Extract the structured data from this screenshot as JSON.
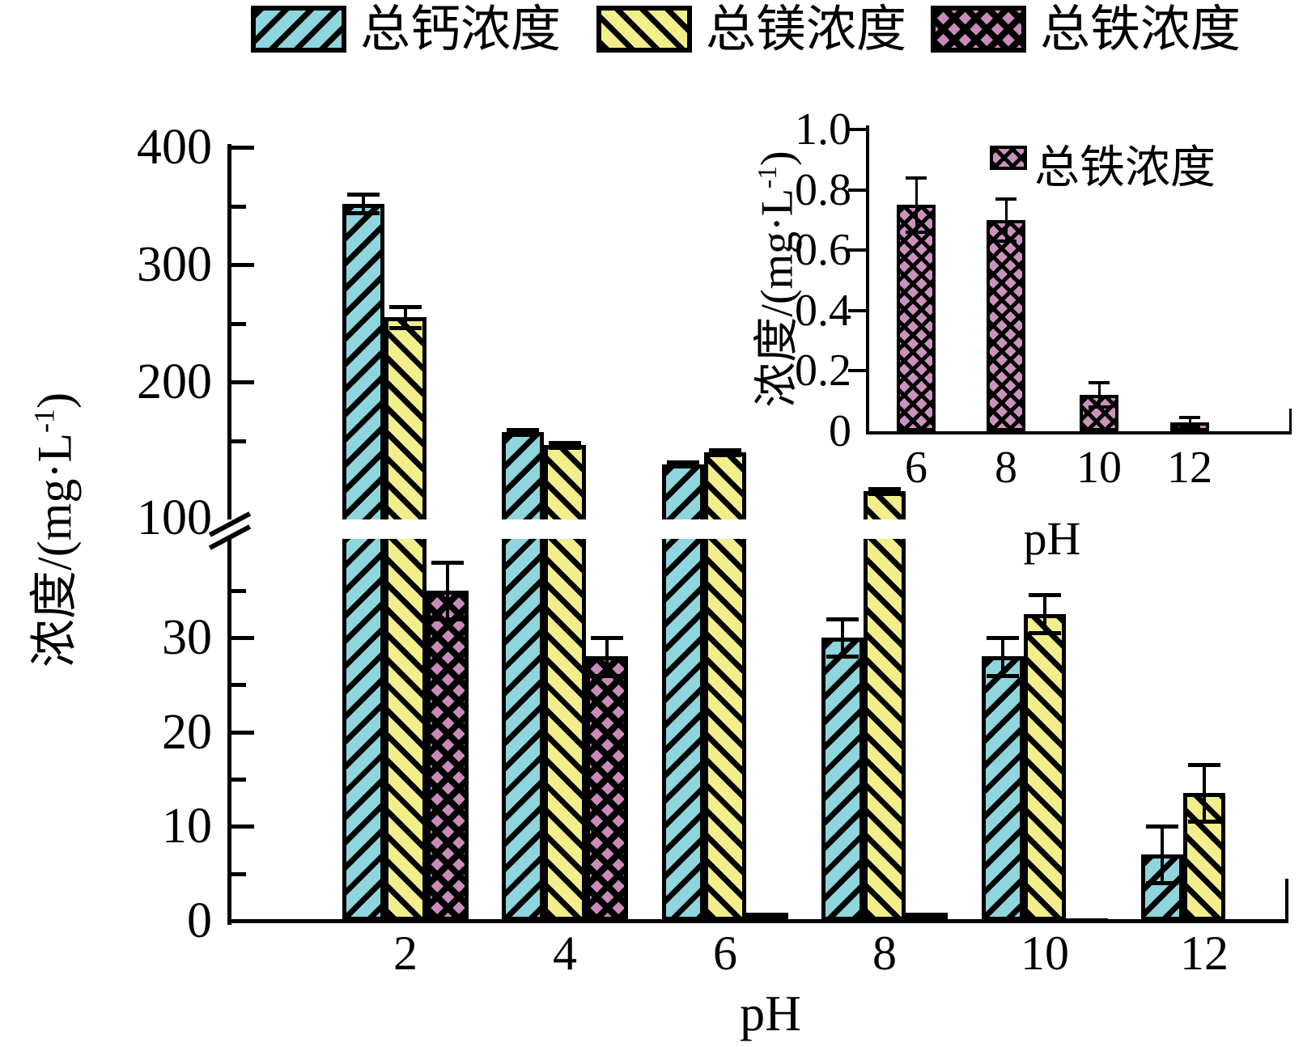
{
  "figure_bg": "#ffffff",
  "colors": {
    "calcium": "#8ed5dd",
    "magnesium": "#f2ee8c",
    "iron": "#c98bb9",
    "axis": "#000000"
  },
  "legend": {
    "items": [
      {
        "label": "总钙浓度",
        "pattern": "forward-diagonal-hatch",
        "color": "#8ed5dd"
      },
      {
        "label": "总镁浓度",
        "pattern": "backward-diagonal-hatch",
        "color": "#f2ee8c"
      },
      {
        "label": "总铁浓度",
        "pattern": "diamond-crosshatch",
        "color": "#c98bb9"
      }
    ]
  },
  "labels": {
    "ylabel_base": "浓度/(mg·L",
    "ylabel_sup": "-1",
    "ylabel_end": ")"
  },
  "chart_data": [
    {
      "id": "main",
      "type": "bar",
      "title": "",
      "xlabel": "pH",
      "ylabel": "浓度/(mg·L⁻¹)",
      "grid": false,
      "legend_position": "top",
      "categories": [
        "2",
        "4",
        "6",
        "8",
        "10",
        "12"
      ],
      "series": [
        {
          "name": "总钙浓度",
          "values": [
            352,
            157,
            130,
            30,
            28,
            7
          ],
          "errors": [
            8,
            2,
            2,
            2,
            2,
            3
          ]
        },
        {
          "name": "总镁浓度",
          "values": [
            255,
            146,
            140,
            107,
            32.5,
            13.5
          ],
          "errors": [
            9,
            2,
            2,
            2,
            2,
            3
          ]
        },
        {
          "name": "总铁浓度",
          "values": [
            35,
            28,
            0.75,
            0.7,
            0.12,
            0.03
          ],
          "errors": [
            3,
            2,
            0.05,
            0.05,
            0.03,
            0.01
          ]
        }
      ],
      "axis_break": {
        "lower_range": [
          0,
          40
        ],
        "upper_range": [
          100,
          400
        ]
      },
      "yticks_lower": [
        0,
        10,
        20,
        30
      ],
      "ytick_labels_lower": [
        "0",
        "10",
        "20",
        "30"
      ],
      "yticks_lower_minor": [
        5,
        15,
        25,
        35
      ],
      "yticks_upper": [
        100,
        200,
        300,
        400
      ],
      "ytick_labels_upper": [
        "100",
        "200",
        "300",
        "400"
      ],
      "yticks_upper_minor": [
        150,
        250,
        350
      ]
    },
    {
      "id": "inset",
      "type": "bar",
      "title": "",
      "xlabel": "pH",
      "ylabel": "浓度/(mg·L⁻¹)",
      "grid": false,
      "legend_position": "top-right",
      "categories": [
        "6",
        "8",
        "10",
        "12"
      ],
      "series": [
        {
          "name": "总铁浓度",
          "values": [
            0.75,
            0.7,
            0.12,
            0.03
          ],
          "errors": [
            0.09,
            0.07,
            0.04,
            0.015
          ]
        }
      ],
      "ylim": [
        0,
        1.0
      ],
      "yticks": [
        0,
        0.2,
        0.4,
        0.6,
        0.8,
        1.0
      ],
      "ytick_labels": [
        "0",
        "0.2",
        "0.4",
        "0.6",
        "0.8",
        "1.0"
      ]
    }
  ]
}
